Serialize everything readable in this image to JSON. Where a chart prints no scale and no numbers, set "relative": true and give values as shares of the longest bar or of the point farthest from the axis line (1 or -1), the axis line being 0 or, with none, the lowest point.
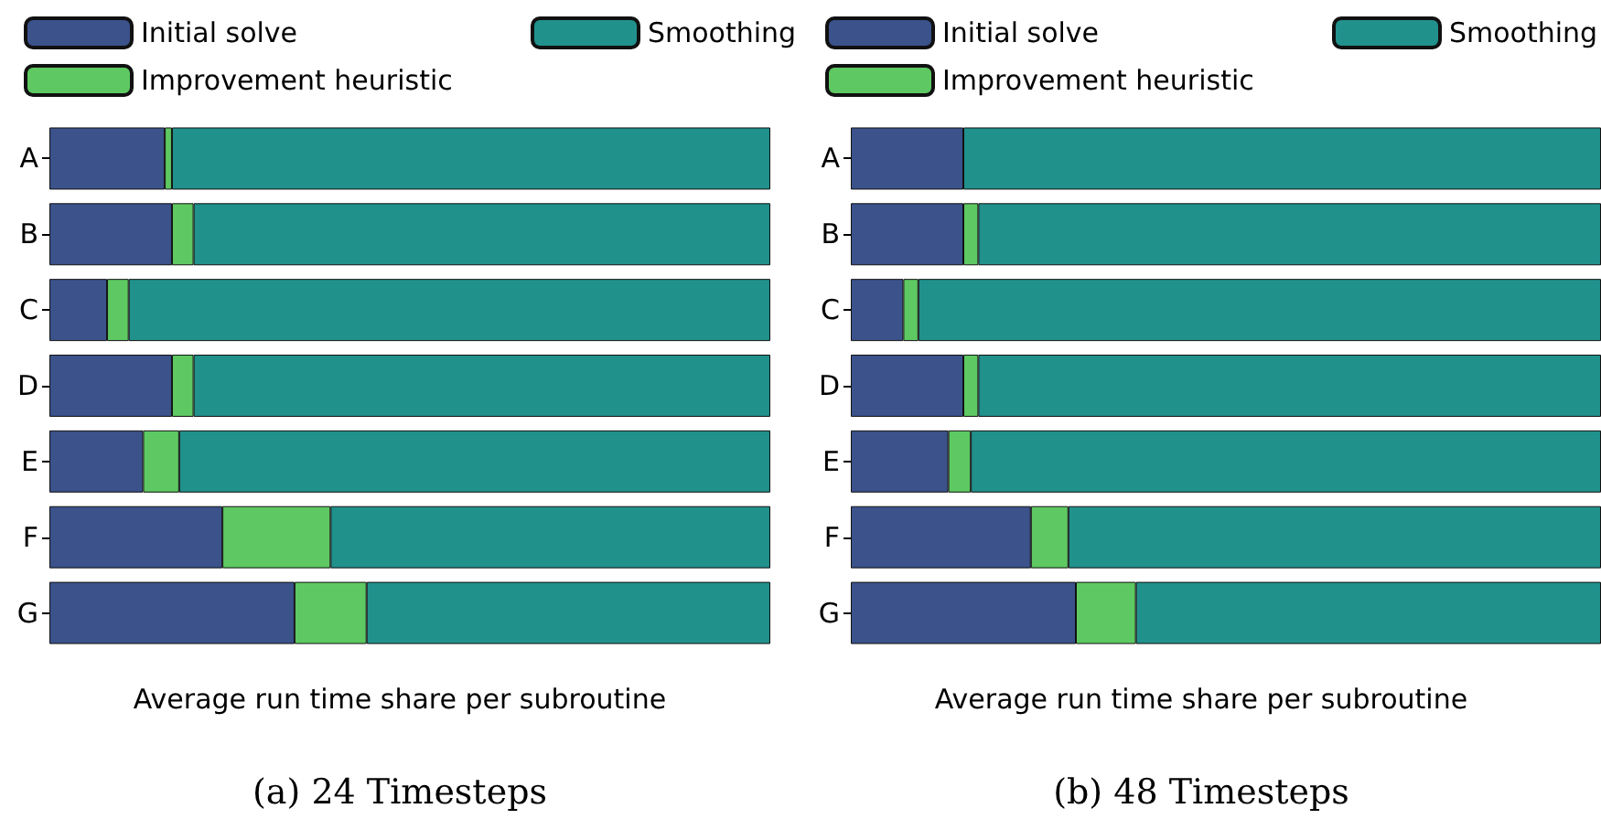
{
  "chart_data": [
    {
      "type": "bar",
      "orientation": "horizontal",
      "stacked": true,
      "relative": true,
      "title": "(a) 24 Timesteps",
      "xlabel": "Average run time share per subroutine",
      "legend": "top",
      "categories": [
        "A",
        "B",
        "C",
        "D",
        "E",
        "F",
        "G"
      ],
      "series": [
        {
          "name": "Initial solve",
          "color": "#3b528b",
          "values": [
            0.16,
            0.17,
            0.08,
            0.17,
            0.13,
            0.24,
            0.34
          ]
        },
        {
          "name": "Improvement heuristic",
          "color": "#5ec962",
          "values": [
            0.01,
            0.03,
            0.03,
            0.03,
            0.05,
            0.15,
            0.1
          ]
        },
        {
          "name": "Smoothing",
          "color": "#21918c",
          "values": [
            0.83,
            0.8,
            0.89,
            0.8,
            0.82,
            0.61,
            0.56
          ]
        }
      ]
    },
    {
      "type": "bar",
      "orientation": "horizontal",
      "stacked": true,
      "relative": true,
      "title": "(b) 48 Timesteps",
      "xlabel": "Average run time share per subroutine",
      "legend": "top",
      "categories": [
        "A",
        "B",
        "C",
        "D",
        "E",
        "F",
        "G"
      ],
      "series": [
        {
          "name": "Initial solve",
          "color": "#3b528b",
          "values": [
            0.15,
            0.15,
            0.07,
            0.15,
            0.13,
            0.24,
            0.3
          ]
        },
        {
          "name": "Improvement heuristic",
          "color": "#5ec962",
          "values": [
            0,
            0.02,
            0.02,
            0.02,
            0.03,
            0.05,
            0.08
          ]
        },
        {
          "name": "Smoothing",
          "color": "#21918c",
          "values": [
            0.85,
            0.83,
            0.91,
            0.83,
            0.84,
            0.71,
            0.62
          ]
        }
      ]
    }
  ]
}
